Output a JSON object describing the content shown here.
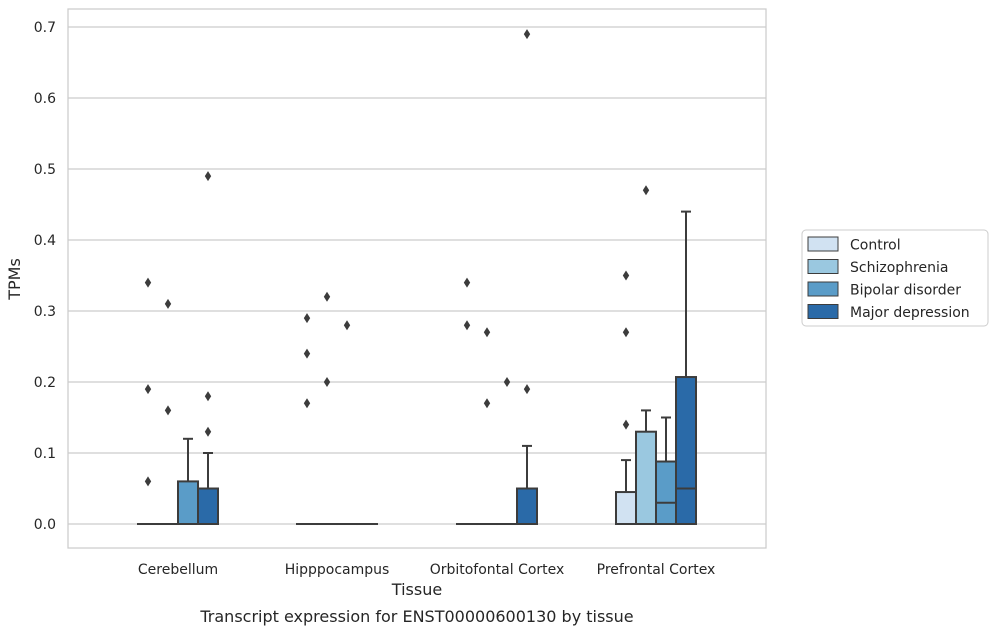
{
  "chart_data": {
    "type": "box",
    "xlabel": "Tissue",
    "ylabel": "TPMs",
    "caption": "Transcript expression for ENST00000600130 by tissue",
    "ylim": [
      -0.035,
      0.725
    ],
    "yticks": [
      "0.0",
      "0.1",
      "0.2",
      "0.3",
      "0.4",
      "0.5",
      "0.6",
      "0.7"
    ],
    "grid": "horizontal",
    "legend_position": "right",
    "categories": [
      "Cerebellum",
      "Hipppocampus",
      "Orbitofontal Cortex",
      "Prefrontal Cortex"
    ],
    "series": [
      {
        "name": "Control",
        "color": "#d1e2f2",
        "boxes": [
          {
            "q1": 0,
            "median": 0,
            "q3": 0,
            "whisker_low": 0,
            "whisker_high": 0,
            "outliers": [
              0.34,
              0.19,
              0.06
            ]
          },
          {
            "q1": 0,
            "median": 0,
            "q3": 0,
            "whisker_low": 0,
            "whisker_high": 0,
            "outliers": [
              0.29,
              0.24,
              0.17
            ]
          },
          {
            "q1": 0,
            "median": 0,
            "q3": 0,
            "whisker_low": 0,
            "whisker_high": 0,
            "outliers": [
              0.34,
              0.28
            ]
          },
          {
            "q1": 0,
            "median": 0,
            "q3": 0.045,
            "whisker_low": 0,
            "whisker_high": 0.09,
            "outliers": [
              0.35,
              0.27,
              0.14
            ]
          }
        ]
      },
      {
        "name": "Schizophrenia",
        "color": "#9ac8e0",
        "boxes": [
          {
            "q1": 0,
            "median": 0,
            "q3": 0,
            "whisker_low": 0,
            "whisker_high": 0,
            "outliers": [
              0.31,
              0.16
            ]
          },
          {
            "q1": 0,
            "median": 0,
            "q3": 0,
            "whisker_low": 0,
            "whisker_high": 0,
            "outliers": [
              0.32,
              0.2
            ]
          },
          {
            "q1": 0,
            "median": 0,
            "q3": 0,
            "whisker_low": 0,
            "whisker_high": 0,
            "outliers": [
              0.27,
              0.17
            ]
          },
          {
            "q1": 0,
            "median": 0,
            "q3": 0.13,
            "whisker_low": 0,
            "whisker_high": 0.16,
            "outliers": [
              0.47
            ]
          }
        ]
      },
      {
        "name": "Bipolar disorder",
        "color": "#5a9cc8",
        "boxes": [
          {
            "q1": 0,
            "median": 0,
            "q3": 0.06,
            "whisker_low": 0,
            "whisker_high": 0.12,
            "outliers": []
          },
          {
            "q1": 0,
            "median": 0,
            "q3": 0,
            "whisker_low": 0,
            "whisker_high": 0,
            "outliers": [
              0.28
            ]
          },
          {
            "q1": 0,
            "median": 0,
            "q3": 0,
            "whisker_low": 0,
            "whisker_high": 0,
            "outliers": [
              0.2
            ]
          },
          {
            "q1": 0,
            "median": 0.03,
            "q3": 0.088,
            "whisker_low": 0,
            "whisker_high": 0.15,
            "outliers": []
          }
        ]
      },
      {
        "name": "Major depression",
        "color": "#2a6aa8",
        "boxes": [
          {
            "q1": 0,
            "median": 0,
            "q3": 0.05,
            "whisker_low": 0,
            "whisker_high": 0.1,
            "outliers": [
              0.49,
              0.18,
              0.13
            ]
          },
          {
            "q1": 0,
            "median": 0,
            "q3": 0,
            "whisker_low": 0,
            "whisker_high": 0,
            "outliers": []
          },
          {
            "q1": 0,
            "median": 0,
            "q3": 0.05,
            "whisker_low": 0,
            "whisker_high": 0.11,
            "outliers": [
              0.69,
              0.19
            ]
          },
          {
            "q1": 0,
            "median": 0.05,
            "q3": 0.207,
            "whisker_low": 0,
            "whisker_high": 0.44,
            "outliers": []
          }
        ]
      }
    ]
  }
}
